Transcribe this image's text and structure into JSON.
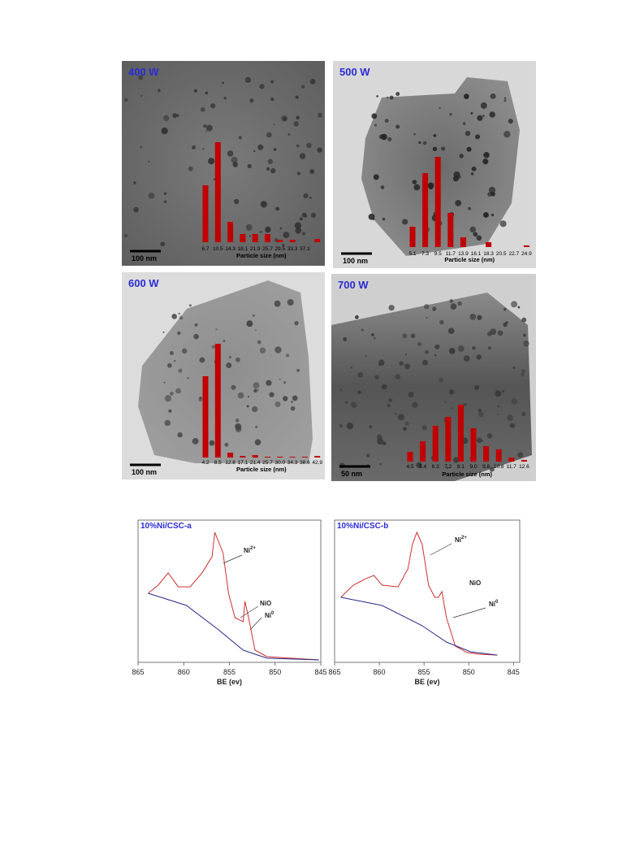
{
  "chart_data": [
    {
      "type": "bar",
      "title": "400 W",
      "annotation": "100 nm",
      "xlabel": "Particle size (nm)",
      "color": "#c00000",
      "categories": [
        "6.7",
        "10.5",
        "14.3",
        "18.1",
        "21.9",
        "25.7",
        "29.5",
        "33.3",
        "37.1",
        null
      ],
      "values": [
        70,
        123,
        25,
        10,
        10,
        10,
        3,
        3,
        0,
        4
      ]
    },
    {
      "type": "bar",
      "title": "500 W",
      "annotation": "100 nm",
      "xlabel": "Particle size (nm)",
      "color": "#c00000",
      "categories": [
        "5.1",
        "7.3",
        "9.5",
        "11.7",
        "13.9",
        "16.1",
        "18.3",
        "20.5",
        "22.7",
        "24.9"
      ],
      "values": [
        25,
        91,
        111,
        42,
        12,
        0,
        6,
        0,
        0,
        2
      ]
    },
    {
      "type": "bar",
      "title": "600 W",
      "annotation": "100 nm",
      "xlabel": "Particle size (nm)",
      "color": "#c00000",
      "categories": [
        "4.2",
        "8.5",
        "12.8",
        "17.1",
        "21.4",
        "25.7",
        "30.0",
        "34.3",
        "38.6",
        "42.9"
      ],
      "values": [
        100,
        140,
        6,
        2,
        3,
        1,
        1,
        1,
        1,
        2
      ]
    },
    {
      "type": "bar",
      "title": "700 W",
      "annotation": "50 nm",
      "xlabel": "Particle size (nm)",
      "color": "#c00000",
      "categories": [
        "4.5",
        "5.4",
        "6.3",
        "7.2",
        "8.1",
        "9.0",
        "9.8",
        "10.8",
        "11.7",
        "12.6"
      ],
      "values": [
        12,
        25,
        44,
        55,
        70,
        41,
        19,
        15,
        5,
        2
      ]
    },
    {
      "type": "line",
      "title": "10%Ni/CSC-a",
      "xlabel": "BE (ev)",
      "xlim": [
        865,
        845
      ],
      "xticks": [
        865,
        860,
        855,
        850,
        845
      ],
      "ylim": [
        0,
        100
      ],
      "annotations": [
        {
          "text": "Ni",
          "sup": "2+"
        },
        {
          "text": "NiO"
        },
        {
          "text": "Ni",
          "sup": "0"
        }
      ],
      "series": [
        {
          "color": "#d03030",
          "x": [
            863.9,
            862.8,
            861.7,
            860.6,
            859.3,
            858.0,
            856.9,
            856.6,
            855.7,
            855.1,
            854.4,
            853.5,
            853.3,
            852.9,
            852.2,
            850.9,
            848.3,
            845.2
          ],
          "values": [
            48.6,
            54.3,
            62.9,
            53.1,
            53.1,
            62.9,
            74.3,
            91.4,
            77.1,
            48.6,
            31.4,
            28.6,
            42.9,
            31.4,
            8.6,
            4.0,
            2.9,
            1.7
          ]
        },
        {
          "color": "#2a2a8a",
          "x": [
            863.9,
            859.7,
            856.2,
            853.5,
            850.9,
            845.2
          ],
          "values": [
            48.6,
            40.0,
            22.9,
            8.6,
            2.9,
            1.7
          ]
        }
      ]
    },
    {
      "type": "line",
      "title": "10%Ni/CSC-b",
      "xlabel": "BE (ev)",
      "xlim": [
        865,
        844.3
      ],
      "xticks": [
        865,
        860,
        855,
        850,
        845
      ],
      "ylim": [
        0,
        100
      ],
      "annotations": [
        {
          "text": "Ni",
          "sup": "2+"
        },
        {
          "text": "NiO"
        },
        {
          "text": "Ni",
          "sup": "0"
        }
      ],
      "series": [
        {
          "color": "#d03030",
          "x": [
            864.3,
            862.9,
            861.5,
            860.6,
            859.7,
            857.9,
            856.8,
            856.3,
            855.8,
            855.2,
            854.5,
            853.8,
            853.4,
            853.0,
            852.5,
            851.5,
            850.2,
            848.8,
            846.8
          ],
          "values": [
            45.7,
            54.3,
            58.9,
            61.1,
            54.3,
            53.1,
            65.7,
            82.9,
            91.4,
            82.9,
            54.3,
            45.7,
            45.7,
            49.7,
            31.4,
            11.4,
            6.9,
            5.7,
            5.1
          ]
        },
        {
          "color": "#2a2a8a",
          "x": [
            864.3,
            859.7,
            855.2,
            852.5,
            849.8,
            846.8
          ],
          "values": [
            45.7,
            40.0,
            25.7,
            14.3,
            7.4,
            5.1
          ]
        }
      ]
    }
  ]
}
